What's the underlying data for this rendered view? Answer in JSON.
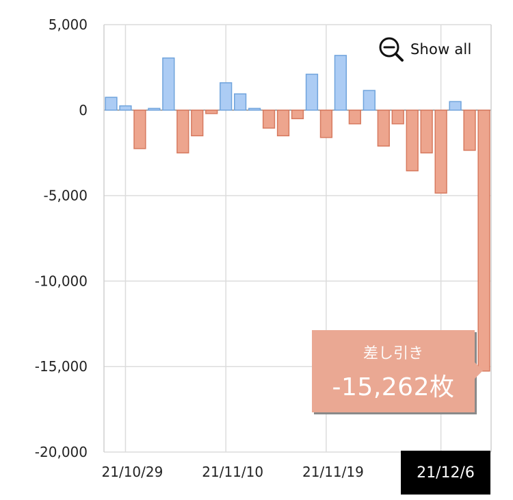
{
  "chart_data": {
    "type": "bar",
    "title": "",
    "xlabel": "",
    "ylabel": "",
    "ylim": [
      -20000,
      5000
    ],
    "yticks": [
      5000,
      0,
      -5000,
      -10000,
      -15000,
      -20000
    ],
    "ytick_labels": [
      "5,000",
      "0",
      "-5,000",
      "-10,000",
      "-15,000",
      "-20,000"
    ],
    "xtick_labels": [
      "21/10/29",
      "21/11/10",
      "21/11/19",
      "21/12/6"
    ],
    "grid": true,
    "colors": {
      "positive": "#acccf4",
      "negative": "#eda58e"
    },
    "values": [
      750,
      250,
      -2250,
      100,
      3050,
      -2500,
      -1500,
      -200,
      1600,
      950,
      100,
      -1050,
      -1500,
      -500,
      2100,
      -1600,
      3200,
      -800,
      1150,
      -2100,
      -800,
      -3550,
      -2500,
      -4850,
      500,
      -2350,
      -15262
    ]
  },
  "toolbar": {
    "show_all_label": "Show all"
  },
  "tooltip": {
    "label": "差し引き",
    "value": "-15,262枚"
  },
  "selected_x_label": "21/12/6"
}
